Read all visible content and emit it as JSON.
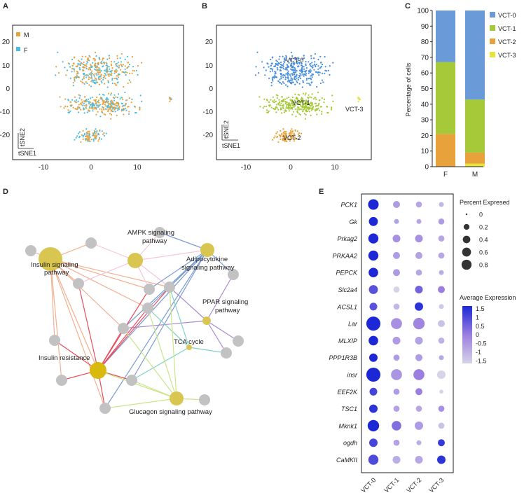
{
  "panels": {
    "A": {
      "letter": "A",
      "legend": [
        {
          "label": "M",
          "color": "#E8A23C"
        },
        {
          "label": "F",
          "color": "#4BBDE3"
        }
      ],
      "xticks": [
        "-10",
        "0",
        "10"
      ],
      "yticks": [
        "20",
        "10",
        "0",
        "-10",
        "-20"
      ],
      "axis_x_label": "tSNE1",
      "axis_y_label": "tSNE2"
    },
    "B": {
      "letter": "B",
      "clusters": [
        {
          "label": "VCT-0",
          "color": "#4A8FDC"
        },
        {
          "label": "VCT-1",
          "color": "#A6C93A"
        },
        {
          "label": "VCT-2",
          "color": "#E8A23C"
        },
        {
          "label": "VCT-3",
          "color": "#E8E23C"
        }
      ],
      "xticks": [
        "-10",
        "0",
        "10"
      ],
      "yticks": [
        "20",
        "10",
        "0",
        "-10",
        "-20"
      ],
      "axis_x_label": "tSNE1",
      "axis_y_label": "tSNE2"
    },
    "D": {
      "letter": "D",
      "pathways": [
        {
          "label": "Insulin signaling pathway",
          "color": "#D9C650"
        },
        {
          "label": "AMPK signaling pathway",
          "color": "#D9C650"
        },
        {
          "label": "Adipocytokine signaling pathway",
          "color": "#D9C650"
        },
        {
          "label": "PPAR signaling pathway",
          "color": "#D9C650"
        },
        {
          "label": "TCA cycle",
          "color": "#D9C650"
        },
        {
          "label": "Insulin resistance",
          "color": "#D9C650"
        },
        {
          "label": "Glucagon signaling pathway",
          "color": "#D9C650"
        }
      ]
    }
  },
  "chart_data": [
    {
      "panel": "C",
      "type": "bar",
      "stacked": true,
      "categories": [
        "F",
        "M"
      ],
      "ylabel": "Percentage of cells",
      "ylim": [
        0,
        100
      ],
      "yticks": [
        0,
        10,
        20,
        30,
        40,
        50,
        60,
        70,
        80,
        90,
        100
      ],
      "series": [
        {
          "name": "VCT-3",
          "color": "#E8E23C",
          "values": [
            0,
            2
          ]
        },
        {
          "name": "VCT-2",
          "color": "#E8A23C",
          "values": [
            21,
            7
          ]
        },
        {
          "name": "VCT-1",
          "color": "#A6C93A",
          "values": [
            46,
            34
          ]
        },
        {
          "name": "VCT-0",
          "color": "#6A9BD8",
          "values": [
            33,
            57
          ]
        }
      ],
      "legend_order": [
        "VCT-0",
        "VCT-1",
        "VCT-2",
        "VCT-3"
      ]
    },
    {
      "panel": "E",
      "type": "scatter",
      "subtype": "dotplot",
      "x": [
        "VCT-0",
        "VCT-1",
        "VCT-2",
        "VCT-3"
      ],
      "genes": [
        "PCK1",
        "Gk",
        "Prkag2",
        "PRKAA2",
        "PEPCK",
        "Slc2a4",
        "ACSL1",
        "Lar",
        "MLXIP",
        "PPP1R3B",
        "insr",
        "EEF2K",
        "TSC1",
        "Mknk1",
        "ogdh",
        "CaMKII"
      ],
      "percent_expressed": [
        [
          0.45,
          0.15,
          0.1,
          0.05
        ],
        [
          0.3,
          0.05,
          0.05,
          0.1
        ],
        [
          0.4,
          0.2,
          0.2,
          0.1
        ],
        [
          0.4,
          0.15,
          0.15,
          0.1
        ],
        [
          0.35,
          0.15,
          0.1,
          0.05
        ],
        [
          0.3,
          0.1,
          0.2,
          0.15
        ],
        [
          0.2,
          0.1,
          0.25,
          0.05
        ],
        [
          0.9,
          0.5,
          0.55,
          0.15
        ],
        [
          0.35,
          0.2,
          0.2,
          0.1
        ],
        [
          0.25,
          0.1,
          0.15,
          0.05
        ],
        [
          0.9,
          0.5,
          0.5,
          0.25
        ],
        [
          0.2,
          0.1,
          0.15,
          0.02
        ],
        [
          0.25,
          0.1,
          0.1,
          0.1
        ],
        [
          0.55,
          0.35,
          0.25,
          0.1
        ],
        [
          0.25,
          0.1,
          0.05,
          0.15
        ],
        [
          0.4,
          0.2,
          0.2,
          0.25
        ]
      ],
      "average_expression": [
        [
          1.5,
          -0.5,
          -0.7,
          -1.0
        ],
        [
          1.5,
          -0.6,
          -0.7,
          -0.5
        ],
        [
          1.5,
          -0.3,
          -0.3,
          -0.7
        ],
        [
          1.5,
          -0.5,
          -0.6,
          -0.7
        ],
        [
          1.5,
          -0.5,
          -0.7,
          -0.8
        ],
        [
          0.8,
          -1.5,
          0.5,
          0.0
        ],
        [
          0.8,
          -1.0,
          1.3,
          -1.3
        ],
        [
          1.5,
          -0.3,
          -0.1,
          -1.2
        ],
        [
          1.5,
          -0.5,
          -0.6,
          -0.9
        ],
        [
          1.5,
          -0.5,
          -0.5,
          -0.7
        ],
        [
          1.5,
          -0.4,
          0.0,
          -1.5
        ],
        [
          1.0,
          -0.5,
          0.0,
          -1.5
        ],
        [
          1.3,
          -0.6,
          -0.7,
          -0.3
        ],
        [
          1.5,
          0.3,
          -0.5,
          -1.2
        ],
        [
          1.0,
          -0.6,
          -0.8,
          1.2
        ],
        [
          0.9,
          -0.8,
          -0.7,
          1.3
        ]
      ],
      "size_legend": {
        "title": "Percent Expresed",
        "values": [
          0,
          0.2,
          0.4,
          0.6,
          0.8
        ],
        "labels": [
          "0",
          "0.2",
          "0.4",
          "0.6",
          "0.8"
        ]
      },
      "color_legend": {
        "title": "Average Expression",
        "labels": [
          "1.5",
          "1",
          "0.5",
          "0",
          "-0.5",
          "-1",
          "-1.5"
        ],
        "low_color": "#D5D3E8",
        "mid_color": "#9B7FE0",
        "high_color": "#1C28D6"
      }
    }
  ]
}
